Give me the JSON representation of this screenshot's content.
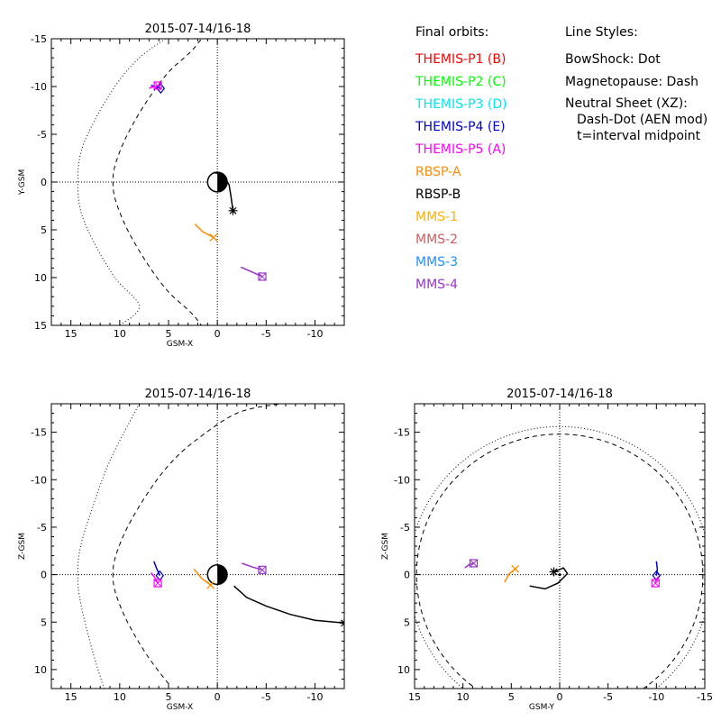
{
  "chart_data": [
    {
      "id": "xy",
      "type": "line",
      "title": "2015-07-14/16-18",
      "xlabel": "GSM-X",
      "ylabel": "Y-GSM",
      "xlim": [
        17,
        -13
      ],
      "ylim": [
        -15,
        15
      ],
      "xticks": [
        15,
        10,
        5,
        0,
        -5,
        -10
      ],
      "yticks": [
        -15,
        -10,
        -5,
        0,
        5,
        10,
        15
      ],
      "bow_shock": [
        [
          5.3,
          -15
        ],
        [
          8,
          -13
        ],
        [
          10.5,
          -10
        ],
        [
          12.8,
          -6
        ],
        [
          14,
          -3
        ],
        [
          14.3,
          0
        ],
        [
          14,
          3
        ],
        [
          12.8,
          6
        ],
        [
          10.5,
          10
        ],
        [
          8,
          13
        ],
        [
          10.0,
          15
        ]
      ],
      "magnetopause": [
        [
          0.3,
          -17
        ],
        [
          2.4,
          -14
        ],
        [
          5,
          -11.5
        ],
        [
          7.2,
          -8.5
        ],
        [
          9.2,
          -5
        ],
        [
          10.4,
          -2
        ],
        [
          10.7,
          0
        ],
        [
          10.4,
          2
        ],
        [
          9.2,
          5
        ],
        [
          7.2,
          8.5
        ],
        [
          5,
          11.5
        ],
        [
          2.4,
          14
        ],
        [
          0.3,
          17
        ]
      ],
      "series": [
        {
          "name": "THEMIS-P4 (E)",
          "points": [
            [
              6.8,
              -10.1
            ],
            [
              6.2,
              -10.0
            ],
            [
              5.8,
              -9.8
            ]
          ],
          "marker": "diamond"
        },
        {
          "name": "THEMIS-P5 (A)",
          "points": [
            [
              7,
              -9.8
            ],
            [
              6.5,
              -10.0
            ],
            [
              6.1,
              -10.1
            ]
          ],
          "marker": "square"
        },
        {
          "name": "RBSP-A",
          "points": [
            [
              2.3,
              4.4
            ],
            [
              1.5,
              5.2
            ],
            [
              0.4,
              5.8
            ]
          ],
          "marker": "x"
        },
        {
          "name": "RBSP-B",
          "points": [
            [
              0.4,
              -1.0
            ],
            [
              -0.6,
              -0.8
            ],
            [
              -1.2,
              0.3
            ],
            [
              -1.4,
              1.5
            ],
            [
              -1.6,
              3.0
            ]
          ],
          "marker": "asterisk"
        },
        {
          "name": "MMS-4",
          "points": [
            [
              -2.4,
              8.9
            ],
            [
              -3.5,
              9.4
            ],
            [
              -4.6,
              9.9
            ]
          ],
          "marker": "square"
        }
      ]
    },
    {
      "id": "xz",
      "type": "line",
      "title": "2015-07-14/16-18",
      "xlabel": "GSM-X",
      "ylabel": "Z-GSM",
      "xlim": [
        17,
        -13
      ],
      "ylim": [
        -18,
        12
      ],
      "xticks": [
        15,
        10,
        5,
        0,
        -5,
        -10
      ],
      "yticks": [
        -15,
        -10,
        -5,
        0,
        5,
        10
      ],
      "bow_shock": [
        [
          11.6,
          12
        ],
        [
          12.8,
          8
        ],
        [
          14,
          3
        ],
        [
          14.3,
          0
        ],
        [
          14,
          -3
        ],
        [
          12.8,
          -7
        ],
        [
          11,
          -12
        ],
        [
          8,
          -18
        ]
      ],
      "magnetopause": [
        [
          5,
          11.5
        ],
        [
          7.2,
          8.5
        ],
        [
          9.2,
          5
        ],
        [
          10.4,
          2
        ],
        [
          10.7,
          0
        ],
        [
          10.4,
          -2
        ],
        [
          9.2,
          -5
        ],
        [
          7.2,
          -8.5
        ],
        [
          5,
          -11.5
        ],
        [
          2.4,
          -14
        ],
        [
          -2,
          -17
        ],
        [
          -6.4,
          -18
        ]
      ],
      "series": [
        {
          "name": "THEMIS-P4 (E)",
          "points": [
            [
              6.5,
              -1.4
            ],
            [
              6.2,
              -0.6
            ],
            [
              5.9,
              0.1
            ]
          ],
          "marker": "diamond"
        },
        {
          "name": "THEMIS-P5 (A)",
          "points": [
            [
              6.8,
              -0.2
            ],
            [
              6.4,
              0.3
            ],
            [
              6.1,
              0.9
            ]
          ],
          "marker": "square"
        },
        {
          "name": "RBSP-A",
          "points": [
            [
              2.4,
              -0.6
            ],
            [
              1.6,
              0.4
            ],
            [
              0.7,
              1.1
            ]
          ],
          "marker": "x"
        },
        {
          "name": "RBSP-B",
          "points": [
            [
              -1.7,
              1.2
            ],
            [
              -3,
              2.4
            ],
            [
              -5,
              3.3
            ],
            [
              -7.5,
              4.2
            ],
            [
              -10,
              4.8
            ],
            [
              -13,
              5.1
            ]
          ],
          "marker": "asterisk"
        },
        {
          "name": "MMS-4",
          "points": [
            [
              -2.5,
              -1.2
            ],
            [
              -3.6,
              -0.8
            ],
            [
              -4.6,
              -0.5
            ]
          ],
          "marker": "square"
        }
      ]
    },
    {
      "id": "yz",
      "type": "line",
      "title": "2015-07-14/16-18",
      "xlabel": "GSM-Y",
      "ylabel": "Z-GSM",
      "xlim": [
        15,
        -15
      ],
      "ylim": [
        -18,
        12
      ],
      "xticks": [
        15,
        10,
        5,
        0,
        -5,
        -10,
        -15
      ],
      "yticks": [
        -15,
        -10,
        -5,
        0,
        5,
        10
      ],
      "circle_dashed_radius": 14.8,
      "series": [
        {
          "name": "THEMIS-P4 (E)",
          "points": [
            [
              -10.0,
              -1.4
            ],
            [
              -10.1,
              -0.6
            ],
            [
              -10.0,
              0.1
            ]
          ],
          "marker": "diamond"
        },
        {
          "name": "THEMIS-P5 (A)",
          "points": [
            [
              -10.2,
              0.2
            ],
            [
              -10.0,
              0.5
            ],
            [
              -9.9,
              0.9
            ]
          ],
          "marker": "square"
        },
        {
          "name": "RBSP-A",
          "points": [
            [
              5.7,
              0.8
            ],
            [
              5.2,
              -0.1
            ],
            [
              4.6,
              -0.6
            ]
          ],
          "marker": "x"
        },
        {
          "name": "RBSP-B",
          "points": [
            [
              3.1,
              1.2
            ],
            [
              1.5,
              1.5
            ],
            [
              0.2,
              0.9
            ],
            [
              -0.8,
              -0.1
            ],
            [
              -0.4,
              -0.7
            ],
            [
              0.6,
              -0.3
            ]
          ],
          "marker": "asterisk"
        },
        {
          "name": "MMS-4",
          "points": [
            [
              9.8,
              -0.7
            ],
            [
              9.3,
              -1.1
            ],
            [
              8.9,
              -1.2
            ]
          ],
          "marker": "square"
        }
      ]
    }
  ],
  "legend": {
    "heading": "Final orbits:",
    "items": [
      {
        "label": "THEMIS-P1 (B)",
        "color": "#ff0000"
      },
      {
        "label": "THEMIS-P2 (C)",
        "color": "#00ff00"
      },
      {
        "label": "THEMIS-P3 (D)",
        "color": "#00e5ee"
      },
      {
        "label": "THEMIS-P4 (E)",
        "color": "#0000cc"
      },
      {
        "label": "THEMIS-P5 (A)",
        "color": "#ff00ff"
      },
      {
        "label": "RBSP-A",
        "color": "#ff8c00"
      },
      {
        "label": "RBSP-B",
        "color": "#000000"
      },
      {
        "label": "MMS-1",
        "color": "#ffb000"
      },
      {
        "label": "MMS-2",
        "color": "#cd5c5c"
      },
      {
        "label": "MMS-3",
        "color": "#1e90ff"
      },
      {
        "label": "MMS-4",
        "color": "#9932cc"
      }
    ]
  },
  "line_styles": {
    "heading": "Line Styles:",
    "lines": [
      "BowShock: Dot",
      "Magnetopause: Dash",
      "Neutral Sheet (XZ):",
      "Dash-Dot (AEN mod)",
      "t=interval midpoint"
    ]
  }
}
